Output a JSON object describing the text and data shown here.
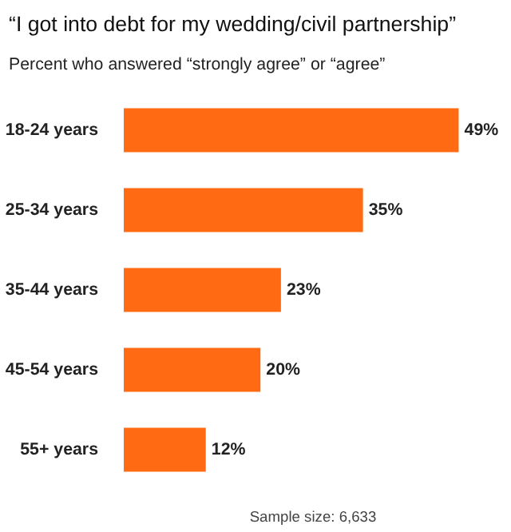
{
  "chart_data": {
    "type": "bar",
    "orientation": "horizontal",
    "title": "“I got into debt for my wedding/civil partnership”",
    "subtitle": "Percent who answered “strongly agree” or “agree”",
    "categories": [
      "18-24 years",
      "25-34 years",
      "35-44 years",
      "45-54 years",
      "55+ years"
    ],
    "values": [
      49,
      35,
      23,
      20,
      12
    ],
    "value_labels": [
      "49%",
      "35%",
      "23%",
      "20%",
      "12%"
    ],
    "color": "#ff6a13",
    "grid": false,
    "annotations": [
      "Sample size: 6,633"
    ]
  }
}
